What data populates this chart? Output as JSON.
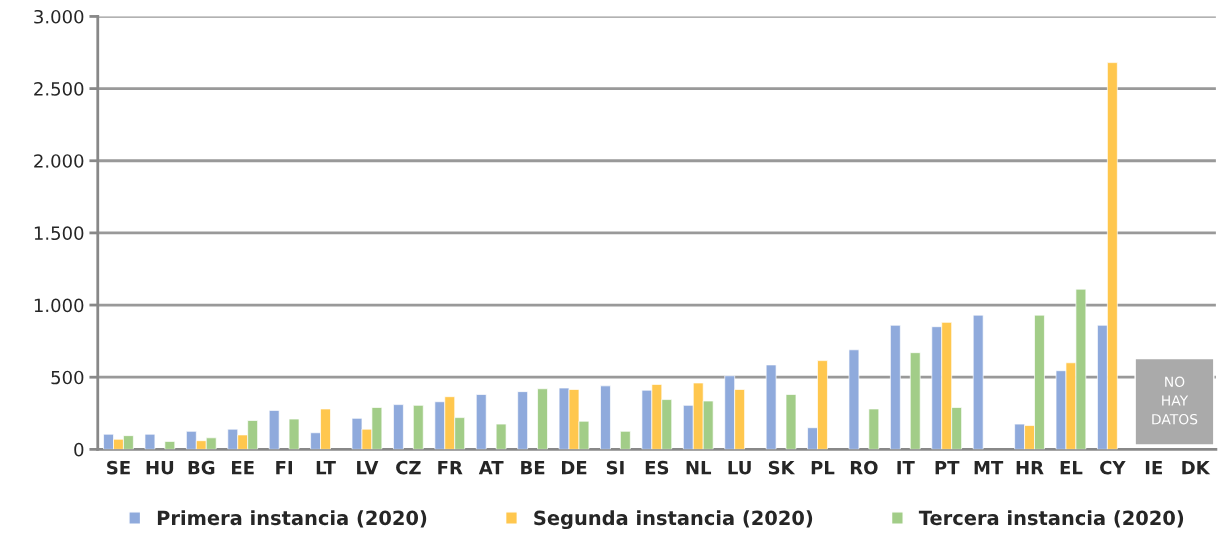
{
  "chart_data": {
    "type": "bar",
    "categories": [
      "SE",
      "HU",
      "BG",
      "EE",
      "FI",
      "LT",
      "LV",
      "CZ",
      "FR",
      "AT",
      "BE",
      "DE",
      "SI",
      "ES",
      "NL",
      "LU",
      "SK",
      "PL",
      "RO",
      "IT",
      "PT",
      "MT",
      "HR",
      "EL",
      "CY",
      "IE",
      "DK"
    ],
    "series": [
      {
        "name": "Primera instancia (2020)",
        "color": "#8faadc",
        "values": [
          105,
          105,
          125,
          140,
          270,
          115,
          215,
          310,
          330,
          380,
          400,
          425,
          440,
          410,
          305,
          510,
          585,
          150,
          690,
          860,
          850,
          930,
          175,
          545,
          860,
          null,
          null
        ]
      },
      {
        "name": "Segunda instancia (2020)",
        "color": "#ffc74e",
        "values": [
          70,
          null,
          60,
          100,
          null,
          280,
          140,
          null,
          365,
          null,
          null,
          415,
          null,
          450,
          460,
          415,
          null,
          615,
          null,
          null,
          880,
          null,
          165,
          600,
          2680,
          null,
          null
        ]
      },
      {
        "name": "Tercera instancia (2020)",
        "color": "#a2cd88",
        "values": [
          95,
          55,
          80,
          200,
          210,
          null,
          290,
          305,
          220,
          175,
          420,
          195,
          125,
          345,
          335,
          null,
          380,
          null,
          280,
          670,
          290,
          null,
          930,
          1110,
          null,
          null,
          null
        ]
      }
    ],
    "ylim": [
      0,
      3000
    ],
    "yticks": [
      {
        "value": 0,
        "label": "0"
      },
      {
        "value": 500,
        "label": "500"
      },
      {
        "value": 1000,
        "label": "1.000"
      },
      {
        "value": 1500,
        "label": "1.500"
      },
      {
        "value": 2000,
        "label": "2.000"
      },
      {
        "value": 2500,
        "label": "2.500"
      },
      {
        "value": 3000,
        "label": "3.000"
      }
    ],
    "grid": "y",
    "legend": "bottom",
    "annotations": [
      "NO\nHAY\nDATOS"
    ]
  }
}
